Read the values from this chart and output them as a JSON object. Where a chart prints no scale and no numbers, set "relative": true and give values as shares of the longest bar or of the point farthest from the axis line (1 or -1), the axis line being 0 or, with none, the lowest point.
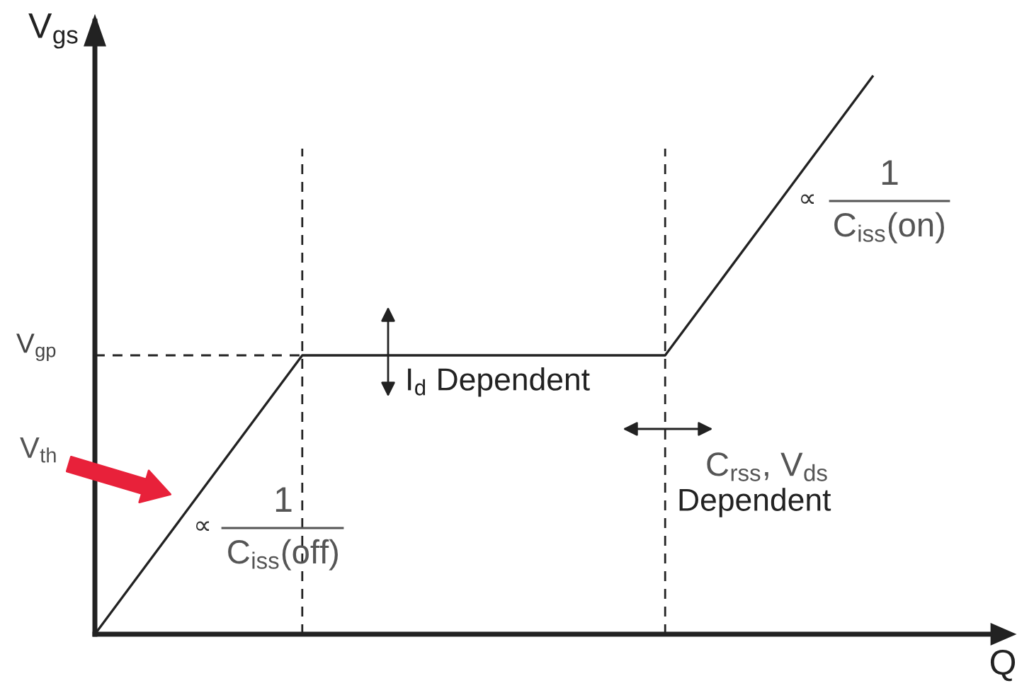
{
  "chart_data": {
    "type": "line",
    "relative": true,
    "xlabel": "Q",
    "ylabel": "V$_{gs}$",
    "categories": [
      null,
      null,
      null,
      null,
      null,
      null,
      null,
      null,
      null,
      null,
      null,
      null,
      null,
      null,
      null,
      null
    ],
    "series": [
      {
        "color": "#222222",
        "values": [
          0,
          0.125,
          0.25,
          0.375,
          0.5,
          0.5,
          0.5,
          0.5,
          0.5,
          0.5,
          0.5,
          0.5,
          0.625,
          0.75,
          0.875,
          1
        ]
      }
    ],
    "ref_lines": [
      {
        "axis": "y",
        "value": 0.5,
        "label": "V$_{gp}$",
        "line_style": "dashed",
        "color": "#222222"
      }
    ],
    "annotations": [
      "V$_{th}$",
      "∝",
      "1",
      "C$_{iss}$(off)",
      "I$_{d}$ Dependent",
      "∝",
      "1",
      "C$_{iss}$(on)",
      "C$_{rss}$, V$_{ds}$",
      "Dependent"
    ],
    "grid": false,
    "marker": "none",
    "line_style": "solid"
  }
}
